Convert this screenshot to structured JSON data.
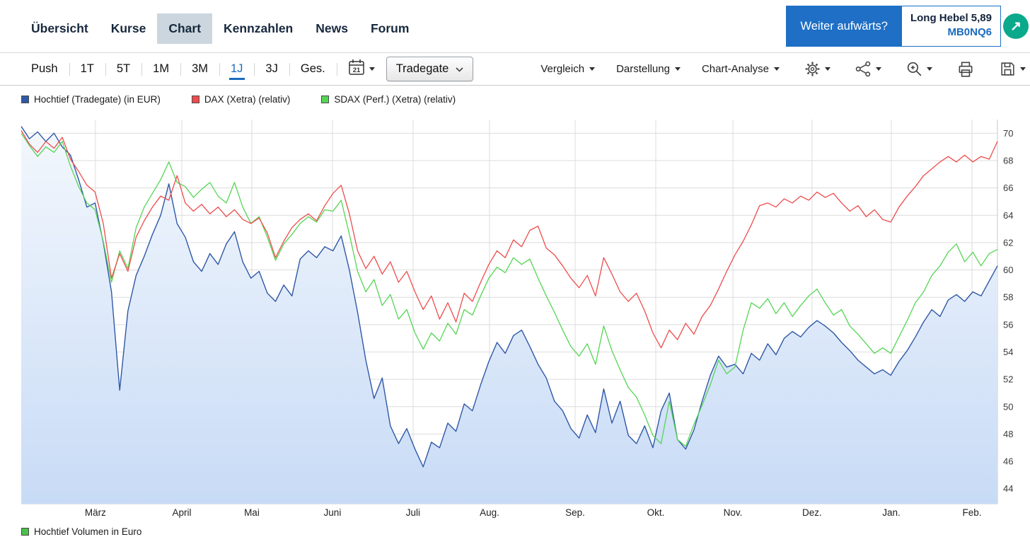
{
  "nav": {
    "items": [
      {
        "label": "Übersicht",
        "active": false
      },
      {
        "label": "Kurse",
        "active": false
      },
      {
        "label": "Chart",
        "active": true
      },
      {
        "label": "Kennzahlen",
        "active": false
      },
      {
        "label": "News",
        "active": false
      },
      {
        "label": "Forum",
        "active": false
      }
    ]
  },
  "promo": {
    "banner_text": "Weiter aufwärts?",
    "product_name": "Long Hebel 5,89",
    "product_code": "MB0NQ6",
    "banner_color": "#1e6fc5",
    "code_color": "#1a6bbf",
    "badge_color": "#0ba98c",
    "badge_arrow": "↗"
  },
  "toolbar": {
    "periods": [
      {
        "label": "Push",
        "active": false
      },
      {
        "label": "1T",
        "active": false
      },
      {
        "label": "5T",
        "active": false
      },
      {
        "label": "1M",
        "active": false
      },
      {
        "label": "3M",
        "active": false
      },
      {
        "label": "1J",
        "active": true
      },
      {
        "label": "3J",
        "active": false
      },
      {
        "label": "Ges.",
        "active": false
      }
    ],
    "calendar_day": "21",
    "exchange_value": "Tradegate",
    "menus": [
      {
        "label": "Vergleich"
      },
      {
        "label": "Darstellung"
      },
      {
        "label": "Chart-Analyse"
      }
    ],
    "icons": [
      "calendar-icon",
      "gear-icon",
      "indicator-nodes-icon",
      "zoom-in-icon",
      "printer-icon",
      "save-icon"
    ],
    "accent_color": "#1a6bbf"
  },
  "legend": {
    "items": [
      {
        "label": "Hochtief (Tradegate) (in EUR)",
        "color": "#2f58a6"
      },
      {
        "label": "DAX (Xetra) (relativ)",
        "color": "#ee4c4c"
      },
      {
        "label": "SDAX (Perf.) (Xetra) (relativ)",
        "color": "#55d555"
      }
    ]
  },
  "bottom_legend": {
    "label": "Hochtief Volumen in Euro",
    "color": "#4cc04c"
  },
  "chart_data": {
    "type": "line",
    "title": "",
    "x_axis": {
      "months": [
        {
          "label": "März",
          "f": 0.076
        },
        {
          "label": "April",
          "f": 0.1645
        },
        {
          "label": "Mai",
          "f": 0.2362
        },
        {
          "label": "Juni",
          "f": 0.3188
        },
        {
          "label": "Juli",
          "f": 0.4014
        },
        {
          "label": "Aug.",
          "f": 0.4797
        },
        {
          "label": "Sep.",
          "f": 0.5674
        },
        {
          "label": "Okt.",
          "f": 0.65
        },
        {
          "label": "Nov.",
          "f": 0.729
        },
        {
          "label": "Dez.",
          "f": 0.8101
        },
        {
          "label": "Jan.",
          "f": 0.8913
        },
        {
          "label": "Feb.",
          "f": 0.9739
        }
      ]
    },
    "y_axis": {
      "ticks": [
        44,
        46,
        48,
        50,
        52,
        54,
        56,
        58,
        60,
        62,
        64,
        66,
        68,
        70
      ],
      "range": [
        42.9,
        71.0
      ],
      "side": "right"
    },
    "grid": true,
    "series": [
      {
        "name": "Hochtief (Tradegate) (in EUR)",
        "color": "#2f58a6",
        "fill": true,
        "fill_top": "#f4f8fd",
        "fill_bottom": "#c8dbf6",
        "values": [
          70.5,
          69.6,
          70.1,
          69.4,
          70.0,
          69.0,
          68.4,
          66.6,
          64.6,
          64.9,
          62.0,
          58.4,
          51.2,
          57.0,
          59.6,
          61.0,
          62.6,
          64.0,
          66.3,
          63.4,
          62.4,
          60.6,
          59.9,
          61.2,
          60.4,
          61.9,
          62.8,
          60.6,
          59.4,
          59.9,
          58.3,
          57.7,
          58.9,
          58.1,
          60.8,
          61.4,
          60.9,
          61.7,
          61.4,
          62.5,
          60.0,
          56.9,
          53.4,
          50.6,
          52.1,
          48.6,
          47.3,
          48.4,
          46.9,
          45.6,
          47.4,
          47.0,
          48.8,
          48.2,
          50.2,
          49.7,
          51.6,
          53.3,
          54.7,
          53.9,
          55.2,
          55.6,
          54.4,
          53.1,
          52.1,
          50.4,
          49.7,
          48.4,
          47.7,
          49.4,
          48.1,
          51.3,
          48.8,
          50.4,
          47.9,
          47.3,
          48.6,
          47.0,
          49.7,
          51.0,
          47.6,
          46.9,
          48.3,
          50.4,
          52.3,
          53.7,
          52.9,
          53.1,
          52.4,
          53.9,
          53.4,
          54.6,
          53.8,
          55.0,
          55.5,
          55.1,
          55.8,
          56.3,
          55.9,
          55.4,
          54.7,
          54.1,
          53.4,
          52.9,
          52.4,
          52.7,
          52.3,
          53.3,
          54.1,
          55.1,
          56.2,
          57.1,
          56.6,
          57.8,
          58.2,
          57.7,
          58.4,
          58.1,
          59.2,
          60.3
        ]
      },
      {
        "name": "DAX (Xetra) (relativ)",
        "color": "#ee4c4c",
        "fill": false,
        "values": [
          70.2,
          69.2,
          68.6,
          69.4,
          68.9,
          69.7,
          68.1,
          67.2,
          66.2,
          65.7,
          63.4,
          59.4,
          61.2,
          59.9,
          62.4,
          63.6,
          64.6,
          65.4,
          65.1,
          66.9,
          64.9,
          64.3,
          64.8,
          64.1,
          64.6,
          63.9,
          64.4,
          63.7,
          63.4,
          63.8,
          62.7,
          60.9,
          62.1,
          63.1,
          63.7,
          64.1,
          63.6,
          64.7,
          65.6,
          66.2,
          64.1,
          61.4,
          60.1,
          61.0,
          59.7,
          60.6,
          59.1,
          59.9,
          58.4,
          57.1,
          58.1,
          56.4,
          57.6,
          56.2,
          58.3,
          57.7,
          59.1,
          60.4,
          61.4,
          60.9,
          62.2,
          61.7,
          62.9,
          63.2,
          61.6,
          61.1,
          60.3,
          59.4,
          58.7,
          59.6,
          58.1,
          60.9,
          59.7,
          58.4,
          57.7,
          58.3,
          57.0,
          55.4,
          54.3,
          55.6,
          54.9,
          56.1,
          55.3,
          56.6,
          57.4,
          58.6,
          59.9,
          61.1,
          62.1,
          63.3,
          64.7,
          64.9,
          64.6,
          65.2,
          64.9,
          65.4,
          65.1,
          65.7,
          65.3,
          65.6,
          64.9,
          64.3,
          64.7,
          63.9,
          64.4,
          63.7,
          63.5,
          64.6,
          65.4,
          66.1,
          66.9,
          67.4,
          67.9,
          68.3,
          67.9,
          68.4,
          67.9,
          68.3,
          68.1,
          69.4
        ]
      },
      {
        "name": "SDAX (Perf.) (Xetra) (relativ)",
        "color": "#55d555",
        "fill": false,
        "values": [
          70.0,
          69.1,
          68.3,
          69.0,
          68.6,
          69.4,
          67.6,
          66.1,
          64.9,
          64.4,
          62.1,
          59.1,
          61.4,
          60.1,
          63.1,
          64.6,
          65.6,
          66.6,
          67.9,
          66.4,
          66.1,
          65.3,
          65.9,
          66.4,
          65.4,
          64.9,
          66.4,
          64.6,
          63.4,
          63.9,
          62.4,
          60.7,
          61.9,
          62.6,
          63.4,
          63.9,
          63.5,
          64.4,
          64.3,
          65.1,
          62.6,
          59.9,
          58.4,
          59.3,
          57.4,
          58.2,
          56.4,
          57.1,
          55.4,
          54.2,
          55.4,
          54.8,
          56.1,
          55.3,
          57.1,
          56.7,
          58.1,
          59.4,
          60.2,
          59.8,
          60.9,
          60.4,
          60.8,
          59.4,
          58.1,
          56.9,
          55.6,
          54.4,
          53.7,
          54.6,
          53.1,
          55.9,
          54.1,
          52.7,
          51.4,
          50.7,
          49.4,
          47.9,
          47.3,
          50.4,
          47.6,
          47.1,
          48.7,
          50.1,
          51.6,
          53.4,
          52.4,
          52.9,
          55.6,
          57.6,
          57.2,
          57.9,
          56.8,
          57.6,
          56.6,
          57.4,
          58.1,
          58.6,
          57.6,
          56.7,
          57.1,
          55.9,
          55.3,
          54.6,
          53.9,
          54.3,
          53.9,
          55.1,
          56.3,
          57.6,
          58.4,
          59.6,
          60.3,
          61.3,
          61.9,
          60.6,
          61.3,
          60.3,
          61.2,
          61.5
        ]
      }
    ]
  }
}
